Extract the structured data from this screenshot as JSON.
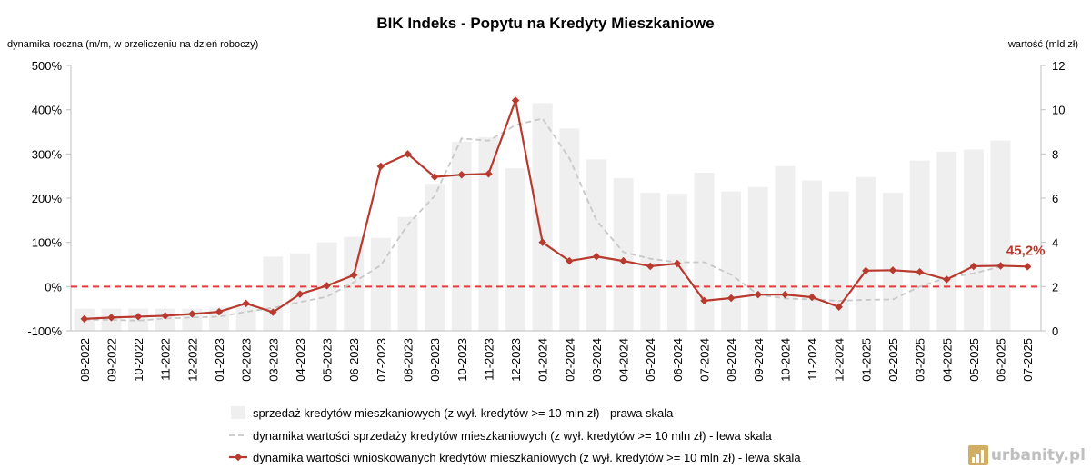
{
  "chart_data": {
    "type": "bar+line",
    "title": "BIK Indeks - Popytu na Kredyty Mieszkaniowe",
    "left_axis_label": "dynamika roczna (m/m, w przeliczeniu na dzień roboczy)",
    "right_axis_label": "wartość (mld zł)",
    "left_ylim": [
      -100,
      500
    ],
    "left_ticks": [
      "-100%",
      "0%",
      "100%",
      "200%",
      "300%",
      "400%",
      "500%"
    ],
    "left_tick_values": [
      -100,
      0,
      100,
      200,
      300,
      400,
      500
    ],
    "right_ylim": [
      0,
      12
    ],
    "right_ticks": [
      "0",
      "2",
      "4",
      "6",
      "8",
      "10",
      "12"
    ],
    "right_tick_values": [
      0,
      2,
      4,
      6,
      8,
      10,
      12
    ],
    "categories": [
      "08-2022",
      "09-2022",
      "10-2022",
      "11-2022",
      "12-2022",
      "01-2023",
      "02-2023",
      "03-2023",
      "04-2023",
      "05-2023",
      "06-2023",
      "07-2023",
      "08-2023",
      "09-2023",
      "10-2023",
      "11-2023",
      "12-2023",
      "01-2024",
      "02-2024",
      "03-2024",
      "04-2024",
      "05-2024",
      "06-2024",
      "07-2024",
      "08-2024",
      "09-2024",
      "10-2024",
      "11-2024",
      "12-2024",
      "01-2025",
      "02-2025",
      "03-2025",
      "04-2025",
      "05-2025",
      "06-2025",
      "07-2025"
    ],
    "series": [
      {
        "name": "sprzedaż kredytów mieszkaniowych (z wył. kredytów >= 10 mln zł) - prawa skala",
        "kind": "bar",
        "axis": "right",
        "color": "#efefef",
        "values": [
          1.0,
          1.0,
          1.0,
          1.0,
          1.0,
          1.05,
          1.15,
          3.35,
          3.5,
          4.0,
          4.25,
          4.2,
          5.15,
          6.65,
          8.55,
          8.75,
          7.35,
          10.3,
          9.15,
          7.75,
          6.9,
          6.25,
          6.2,
          7.15,
          6.3,
          6.5,
          7.45,
          6.8,
          6.3,
          6.95,
          6.25,
          7.7,
          8.1,
          8.2,
          8.6,
          null
        ]
      },
      {
        "name": "dynamika wartości sprzedaży kredytów mieszkaniowych (z wył. kredytów >= 10 mln zł) - lewa skala",
        "kind": "line",
        "axis": "left",
        "dashed": true,
        "color": "#c8c8c8",
        "values": [
          -75,
          -75,
          -77,
          -72,
          -70,
          -68,
          -57,
          -48,
          -35,
          -23,
          10,
          48,
          140,
          205,
          335,
          330,
          365,
          380,
          290,
          150,
          78,
          63,
          55,
          55,
          27,
          -18,
          -27,
          -29,
          -32,
          -30,
          -29,
          0,
          20,
          30,
          45,
          null
        ]
      },
      {
        "name": "dynamika wartości wnioskowanych kredytów mieszkaniowych (z wył. kredytów >= 10 mln zł) - lewa skala",
        "kind": "line",
        "axis": "left",
        "dashed": false,
        "color": "#b83a2e",
        "values": [
          -73,
          -70,
          -68,
          -66,
          -62,
          -57,
          -38,
          -58,
          -17,
          2,
          26,
          272,
          300,
          248,
          253,
          255,
          421,
          100,
          58,
          68,
          58,
          46,
          52,
          -32,
          -26,
          -18,
          -18,
          -24,
          -46,
          36,
          37,
          33,
          16,
          46,
          47,
          45.2
        ]
      }
    ],
    "zero_line_color": "#e03c3c",
    "callout": {
      "text": "45,2%",
      "category": "07-2025",
      "value": 45.2,
      "color": "#b83a2e"
    },
    "legend_position": "bottom",
    "grid": false
  },
  "watermark": {
    "text": "urbanity.pl",
    "color": "#c9a14a"
  }
}
